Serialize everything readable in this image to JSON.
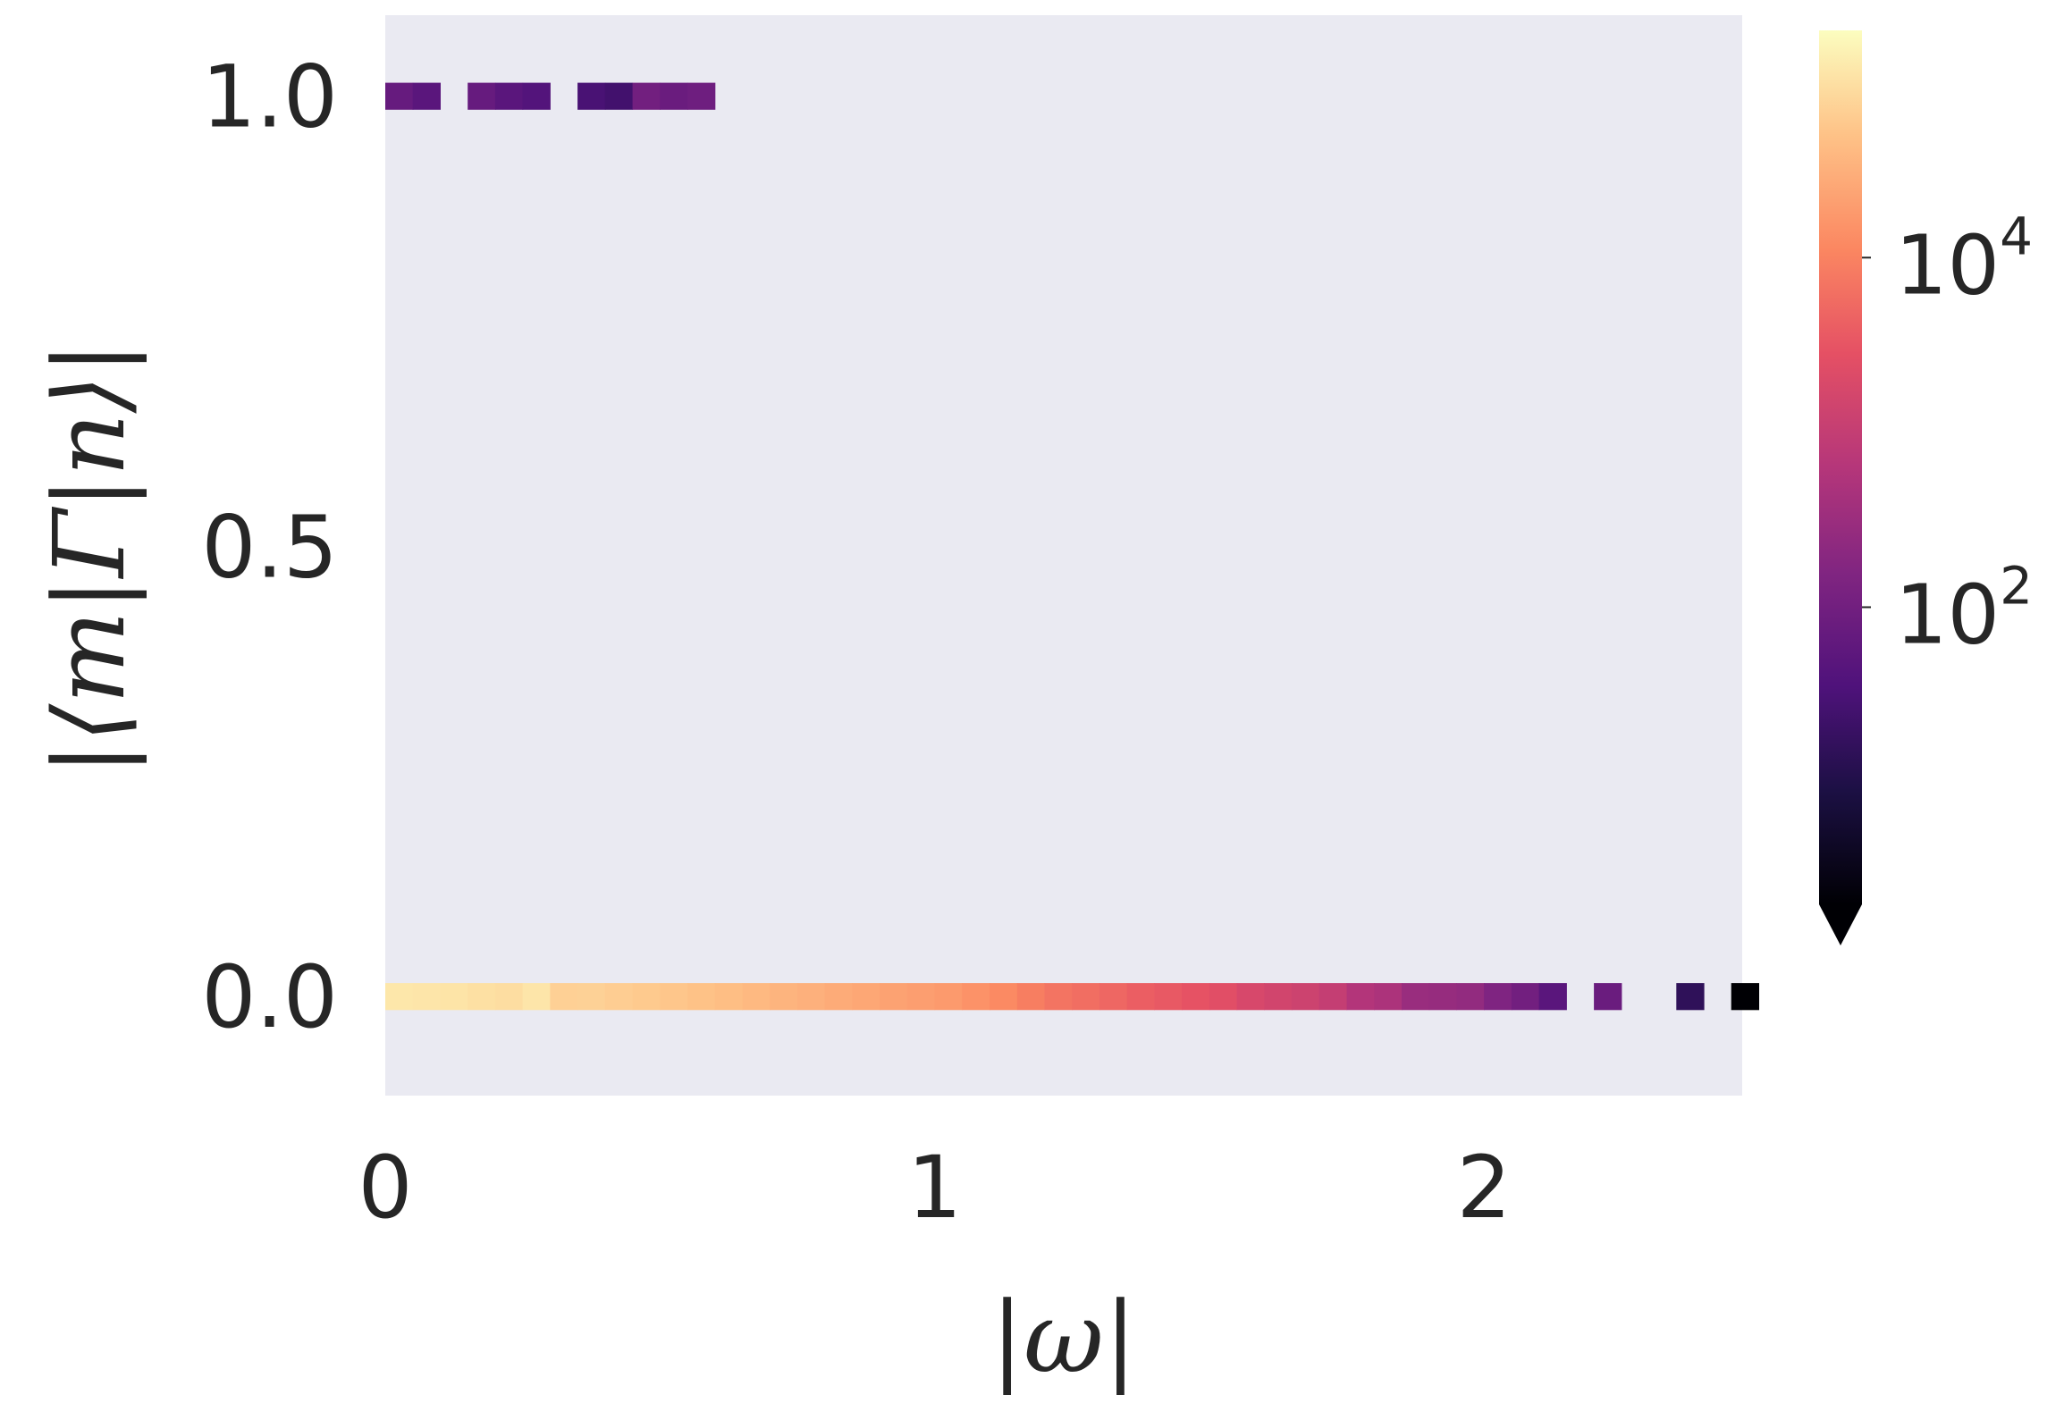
{
  "chart_data": {
    "type": "heatmap",
    "title": "",
    "xlabel": "|ω|",
    "ylabel": "|⟨m|Γ|n⟩|",
    "xlim": [
      0,
      2.47
    ],
    "ylim": [
      -0.11,
      1.09
    ],
    "xticks": [
      {
        "value": 0,
        "label": "0"
      },
      {
        "value": 1,
        "label": "1"
      },
      {
        "value": 2,
        "label": "2"
      }
    ],
    "yticks": [
      {
        "value": 0.0,
        "label": "0.0"
      },
      {
        "value": 0.5,
        "label": "0.5"
      },
      {
        "value": 1.0,
        "label": "1.0"
      }
    ],
    "grid": false,
    "bin_width": 0.05,
    "row_height": 0.03,
    "colormap": "magma",
    "colorbar": {
      "scale": "log",
      "range_log10": [
        0.3,
        5.3
      ],
      "extend": "min",
      "ticks": [
        {
          "value": 100,
          "base": "10",
          "exponent": "2"
        },
        {
          "value": 10000,
          "base": "10",
          "exponent": "4"
        }
      ]
    },
    "series": [
      {
        "y": 0.0,
        "cells": [
          {
            "x": 0.0,
            "count": 120000
          },
          {
            "x": 0.05,
            "count": 115000
          },
          {
            "x": 0.1,
            "count": 110000
          },
          {
            "x": 0.15,
            "count": 100000
          },
          {
            "x": 0.2,
            "count": 95000
          },
          {
            "x": 0.25,
            "count": 115000
          },
          {
            "x": 0.3,
            "count": 70000
          },
          {
            "x": 0.35,
            "count": 72000
          },
          {
            "x": 0.4,
            "count": 65000
          },
          {
            "x": 0.45,
            "count": 60000
          },
          {
            "x": 0.5,
            "count": 55000
          },
          {
            "x": 0.55,
            "count": 50000
          },
          {
            "x": 0.6,
            "count": 45000
          },
          {
            "x": 0.65,
            "count": 40000
          },
          {
            "x": 0.7,
            "count": 35000
          },
          {
            "x": 0.75,
            "count": 32000
          },
          {
            "x": 0.8,
            "count": 28000
          },
          {
            "x": 0.85,
            "count": 25000
          },
          {
            "x": 0.9,
            "count": 22000
          },
          {
            "x": 0.95,
            "count": 20000
          },
          {
            "x": 1.0,
            "count": 18000
          },
          {
            "x": 1.05,
            "count": 15000
          },
          {
            "x": 1.1,
            "count": 12000
          },
          {
            "x": 1.15,
            "count": 9000
          },
          {
            "x": 1.2,
            "count": 7000
          },
          {
            "x": 1.25,
            "count": 6000
          },
          {
            "x": 1.3,
            "count": 5000
          },
          {
            "x": 1.35,
            "count": 4000
          },
          {
            "x": 1.4,
            "count": 3500
          },
          {
            "x": 1.45,
            "count": 3000
          },
          {
            "x": 1.5,
            "count": 2500
          },
          {
            "x": 1.55,
            "count": 1800
          },
          {
            "x": 1.6,
            "count": 1500
          },
          {
            "x": 1.65,
            "count": 1300
          },
          {
            "x": 1.7,
            "count": 1000
          },
          {
            "x": 1.75,
            "count": 600
          },
          {
            "x": 1.8,
            "count": 500
          },
          {
            "x": 1.85,
            "count": 300
          },
          {
            "x": 1.9,
            "count": 280
          },
          {
            "x": 1.95,
            "count": 250
          },
          {
            "x": 2.0,
            "count": 150
          },
          {
            "x": 2.05,
            "count": 100
          },
          {
            "x": 2.1,
            "count": 50
          },
          {
            "x": 2.2,
            "count": 80
          },
          {
            "x": 2.35,
            "count": 15
          },
          {
            "x": 2.45,
            "count": 1
          }
        ]
      },
      {
        "y": 1.0,
        "cells": [
          {
            "x": 0.0,
            "count": 70
          },
          {
            "x": 0.05,
            "count": 50
          },
          {
            "x": 0.15,
            "count": 70
          },
          {
            "x": 0.2,
            "count": 50
          },
          {
            "x": 0.25,
            "count": 40
          },
          {
            "x": 0.35,
            "count": 30
          },
          {
            "x": 0.4,
            "count": 25
          },
          {
            "x": 0.45,
            "count": 100
          },
          {
            "x": 0.5,
            "count": 80
          },
          {
            "x": 0.55,
            "count": 90
          }
        ]
      }
    ]
  }
}
